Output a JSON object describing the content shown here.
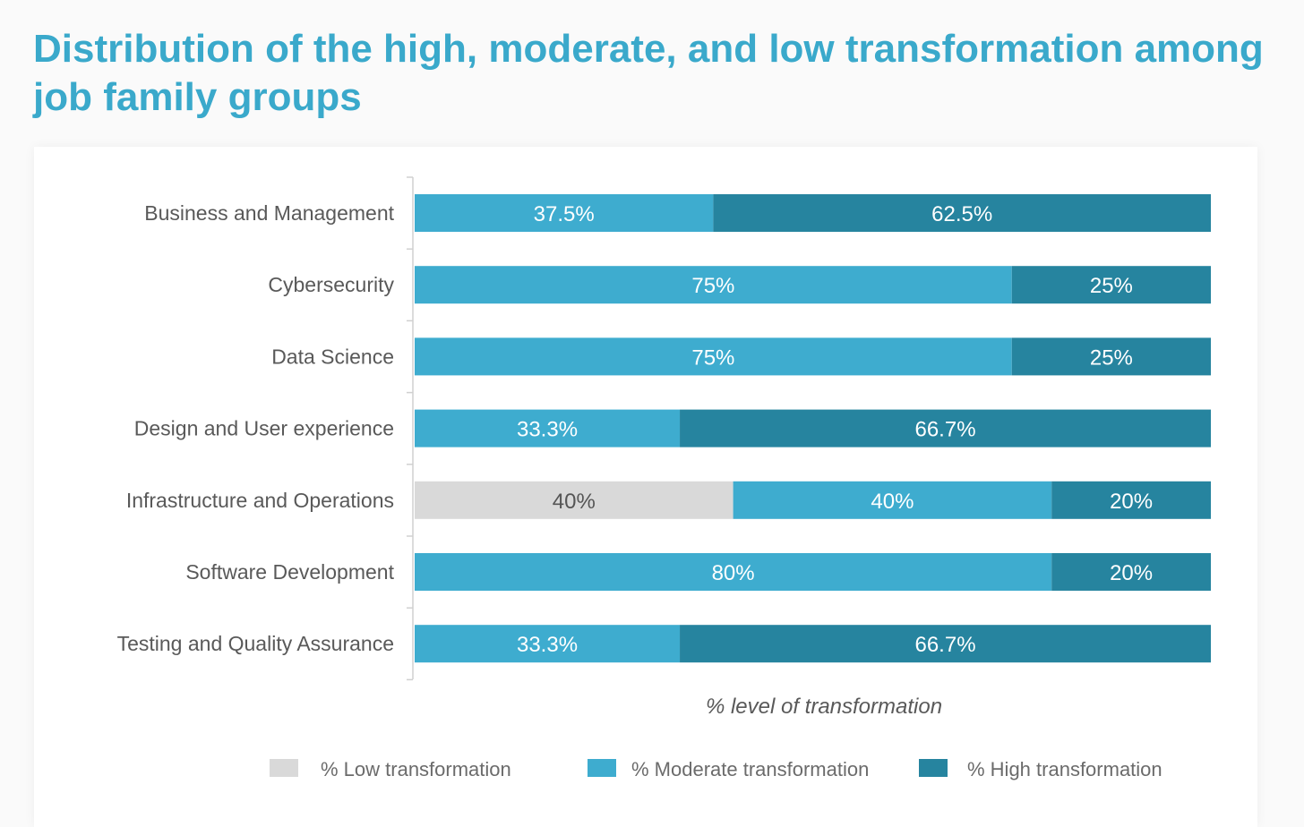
{
  "title": "Distribution of the high, moderate, and low transformation among job family groups",
  "chart_data": {
    "type": "bar",
    "orientation": "horizontal",
    "stacked": true,
    "categories": [
      "Business and Management",
      "Cybersecurity",
      "Data Science",
      "Design and User experience",
      "Infrastructure and Operations",
      "Software Development",
      "Testing and Quality Assurance"
    ],
    "series": [
      {
        "name": "% Low transformation",
        "color": "#d9d9d9",
        "label_color": "#555555",
        "values": [
          0,
          0,
          0,
          0,
          40,
          0,
          0
        ],
        "labels": [
          "",
          "",
          "",
          "",
          "40%",
          "",
          ""
        ]
      },
      {
        "name": "% Moderate transformation",
        "color": "#3eaccf",
        "label_color": "#ffffff",
        "values": [
          37.5,
          75,
          75,
          33.3,
          40,
          80,
          33.3
        ],
        "labels": [
          "37.5%",
          "75%",
          "75%",
          "33.3%",
          "40%",
          "80%",
          "33.3%"
        ]
      },
      {
        "name": "% High transformation",
        "color": "#26849f",
        "label_color": "#ffffff",
        "values": [
          62.5,
          25,
          25,
          66.7,
          20,
          20,
          66.7
        ],
        "labels": [
          "62.5%",
          "25%",
          "25%",
          "66.7%",
          "20%",
          "20%",
          "66.7%"
        ]
      }
    ],
    "xlabel": "% level of transformation",
    "xlim": [
      0,
      100
    ],
    "grid": false,
    "legend_position": "bottom"
  }
}
